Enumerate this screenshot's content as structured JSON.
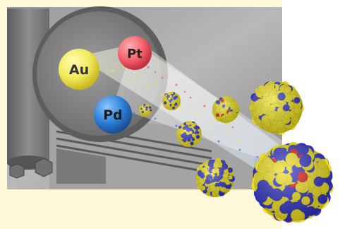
{
  "sources": {
    "au": {
      "label": "Au",
      "color": "#f2ea5a"
    },
    "pt": {
      "label": "Pt",
      "color": "#f4606a"
    },
    "pd": {
      "label": "Pd",
      "color": "#2d7fd6"
    }
  },
  "cluster_colors": {
    "gold": "#f0e11a",
    "palladium": "#2c2fc4",
    "platinum": "#e01818"
  },
  "frame_color": "#fdf9d8"
}
